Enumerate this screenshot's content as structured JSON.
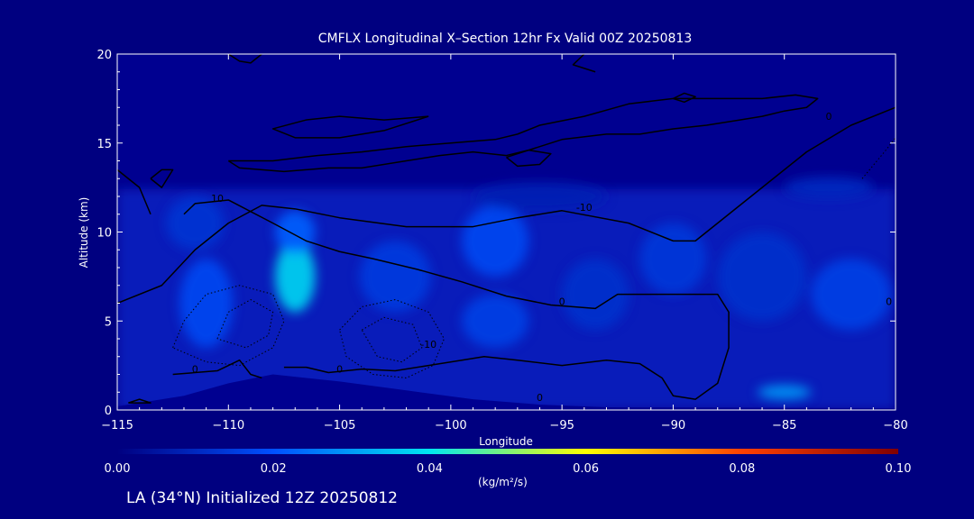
{
  "chart_data": {
    "type": "heatmap",
    "title": "CMFLX Longitudinal X–Section 12hr  Fx Valid 00Z 20250813",
    "xlabel": "Longitude",
    "ylabel": "Altitude (km)",
    "xlim": [
      -115,
      -80
    ],
    "ylim": [
      0,
      20
    ],
    "x_ticks": [
      -115,
      -110,
      -105,
      -100,
      -95,
      -90,
      -85,
      -80
    ],
    "x_tick_labels": [
      "−115",
      "−110",
      "−105",
      "−100",
      "−95",
      "−90",
      "−85",
      "−80"
    ],
    "y_ticks": [
      0,
      5,
      10,
      15,
      20
    ],
    "y_tick_labels": [
      "0",
      "5",
      "10",
      "15",
      "20"
    ],
    "colorbar": {
      "ticks": [
        0.0,
        0.02,
        0.04,
        0.06,
        0.08,
        0.1
      ],
      "tick_labels": [
        "0.00",
        "0.02",
        "0.04",
        "0.06",
        "0.08",
        "0.10"
      ],
      "units": "(kg/m²/s)",
      "colors": [
        "#000080",
        "#0050ff",
        "#00e6f0",
        "#ffff00",
        "#ff4000",
        "#800000"
      ]
    },
    "field_blobs": [
      {
        "lon": -111,
        "alt": 6,
        "sx": 1.2,
        "sy": 2.5,
        "value": 0.018
      },
      {
        "lon": -111.5,
        "alt": 10.5,
        "sx": 1.3,
        "sy": 1.5,
        "value": 0.013
      },
      {
        "lon": -107,
        "alt": 7.5,
        "sx": 0.9,
        "sy": 2.0,
        "value": 0.038
      },
      {
        "lon": -107,
        "alt": 10,
        "sx": 0.9,
        "sy": 1.2,
        "value": 0.022
      },
      {
        "lon": -102.5,
        "alt": 7.5,
        "sx": 1.6,
        "sy": 2.0,
        "value": 0.015
      },
      {
        "lon": -98,
        "alt": 9.5,
        "sx": 1.5,
        "sy": 2.0,
        "value": 0.018
      },
      {
        "lon": -98,
        "alt": 5,
        "sx": 1.5,
        "sy": 1.5,
        "value": 0.016
      },
      {
        "lon": -93.5,
        "alt": 6.5,
        "sx": 1.5,
        "sy": 2.0,
        "value": 0.012
      },
      {
        "lon": -90,
        "alt": 8.5,
        "sx": 1.5,
        "sy": 2.0,
        "value": 0.014
      },
      {
        "lon": -86,
        "alt": 7.5,
        "sx": 2.0,
        "sy": 2.5,
        "value": 0.012
      },
      {
        "lon": -82,
        "alt": 6.5,
        "sx": 1.8,
        "sy": 2.0,
        "value": 0.016
      },
      {
        "lon": -85,
        "alt": 1,
        "sx": 1.2,
        "sy": 0.4,
        "value": 0.03
      },
      {
        "lon": -96,
        "alt": 12,
        "sx": 3.0,
        "sy": 0.8,
        "value": 0.008
      },
      {
        "lon": -83,
        "alt": 12.5,
        "sx": 2.0,
        "sy": 0.6,
        "value": 0.01
      }
    ],
    "terrain_km": [
      [
        -115,
        0.2
      ],
      [
        -112,
        0.8
      ],
      [
        -110,
        1.5
      ],
      [
        -108,
        2.0
      ],
      [
        -105,
        1.6
      ],
      [
        -102,
        1.1
      ],
      [
        -99,
        0.6
      ],
      [
        -96,
        0.3
      ],
      [
        -93,
        0.15
      ],
      [
        -80,
        0.1
      ]
    ],
    "contour_labels": [
      {
        "text": "0",
        "lon": -111.5,
        "alt": 2.1
      },
      {
        "text": "0",
        "lon": -105,
        "alt": 2.1
      },
      {
        "text": "0",
        "lon": -96,
        "alt": 0.5
      },
      {
        "text": "0",
        "lon": -95,
        "alt": 5.9
      },
      {
        "text": "0",
        "lon": -80.3,
        "alt": 5.9
      },
      {
        "text": "0",
        "lon": -83,
        "alt": 16.3
      },
      {
        "text": "-10",
        "lon": -101,
        "alt": 3.5
      },
      {
        "text": "-10",
        "lon": -94,
        "alt": 11.2
      },
      {
        "text": "10",
        "lon": -110.5,
        "alt": 11.7
      }
    ],
    "contours": [
      [
        [
          -115,
          6
        ],
        [
          -113,
          7
        ],
        [
          -111.5,
          9
        ],
        [
          -110,
          10.5
        ],
        [
          -108.5,
          11.5
        ],
        [
          -107,
          11.3
        ],
        [
          -105,
          10.8
        ],
        [
          -102,
          10.3
        ],
        [
          -99,
          10.3
        ],
        [
          -97,
          10.8
        ],
        [
          -95,
          11.2
        ],
        [
          -92,
          10.5
        ],
        [
          -90,
          9.5
        ],
        [
          -89,
          9.5
        ],
        [
          -87.5,
          11
        ],
        [
          -86,
          12.5
        ],
        [
          -84,
          14.5
        ],
        [
          -82,
          16
        ],
        [
          -80,
          17
        ]
      ],
      [
        [
          -112.5,
          2
        ],
        [
          -110.5,
          2.2
        ],
        [
          -109.5,
          2.8
        ],
        [
          -109,
          2
        ],
        [
          -108.5,
          1.8
        ]
      ],
      [
        [
          -107.5,
          2.4
        ],
        [
          -106.5,
          2.4
        ],
        [
          -105.5,
          2.1
        ],
        [
          -104,
          2.3
        ],
        [
          -102.5,
          2.2
        ],
        [
          -101,
          2.5
        ],
        [
          -99.5,
          2.8
        ],
        [
          -98.5,
          3.0
        ],
        [
          -97,
          2.8
        ],
        [
          -95,
          2.5
        ],
        [
          -93,
          2.8
        ],
        [
          -91.5,
          2.6
        ],
        [
          -90.5,
          1.8
        ],
        [
          -90,
          0.8
        ],
        [
          -89,
          0.6
        ],
        [
          -88,
          1.5
        ],
        [
          -87.5,
          3.5
        ],
        [
          -87.5,
          5.5
        ],
        [
          -88,
          6.5
        ],
        [
          -89.5,
          6.5
        ],
        [
          -91,
          6.5
        ],
        [
          -92.5,
          6.5
        ],
        [
          -93.5,
          5.7
        ],
        [
          -95.5,
          5.9
        ],
        [
          -97.5,
          6.4
        ],
        [
          -99.5,
          7.2
        ],
        [
          -101.5,
          7.9
        ],
        [
          -103.5,
          8.5
        ],
        [
          -105,
          8.9
        ],
        [
          -106.5,
          9.5
        ],
        [
          -108,
          10.5
        ],
        [
          -110,
          11.8
        ],
        [
          -111.5,
          11.6
        ],
        [
          -112,
          11.0
        ]
      ],
      [
        [
          -114.5,
          0.4
        ],
        [
          -114,
          0.6
        ],
        [
          -113.5,
          0.4
        ],
        [
          -114.5,
          0.4
        ]
      ],
      [
        [
          -115,
          13.5
        ],
        [
          -114,
          12.5
        ],
        [
          -113.5,
          11
        ]
      ],
      [
        [
          -113.5,
          13
        ],
        [
          -113,
          13.5
        ],
        [
          -112.5,
          13.5
        ],
        [
          -113,
          12.5
        ],
        [
          -113.5,
          13
        ]
      ],
      [
        [
          -110,
          14
        ],
        [
          -108,
          14
        ],
        [
          -106,
          14.3
        ],
        [
          -104,
          14.5
        ],
        [
          -102,
          14.8
        ],
        [
          -100,
          15
        ],
        [
          -98,
          15.2
        ],
        [
          -97,
          15.5
        ],
        [
          -96,
          16
        ],
        [
          -94,
          16.5
        ],
        [
          -92,
          17.2
        ],
        [
          -90,
          17.5
        ],
        [
          -88,
          17.5
        ],
        [
          -86,
          17.5
        ],
        [
          -84.5,
          17.7
        ],
        [
          -83.5,
          17.5
        ],
        [
          -84,
          17
        ],
        [
          -85,
          16.8
        ],
        [
          -86,
          16.5
        ],
        [
          -87,
          16.3
        ],
        [
          -88.5,
          16
        ],
        [
          -90,
          15.8
        ],
        [
          -91.5,
          15.5
        ],
        [
          -93,
          15.5
        ],
        [
          -95,
          15.2
        ],
        [
          -96.5,
          14.6
        ],
        [
          -97.5,
          14.3
        ],
        [
          -99,
          14.5
        ],
        [
          -100.5,
          14.3
        ],
        [
          -102,
          14
        ],
        [
          -104,
          13.6
        ],
        [
          -105.5,
          13.6
        ],
        [
          -107.5,
          13.4
        ],
        [
          -109.5,
          13.6
        ],
        [
          -110,
          14
        ]
      ],
      [
        [
          -101,
          16.5
        ],
        [
          -103,
          16.3
        ],
        [
          -105,
          16.5
        ],
        [
          -106.5,
          16.3
        ],
        [
          -108,
          15.8
        ],
        [
          -107,
          15.3
        ],
        [
          -105,
          15.3
        ],
        [
          -103,
          15.7
        ],
        [
          -101,
          16.5
        ]
      ],
      [
        [
          -97.5,
          14.2
        ],
        [
          -96.5,
          14.6
        ],
        [
          -95.5,
          14.4
        ],
        [
          -96,
          13.8
        ],
        [
          -97,
          13.7
        ],
        [
          -97.5,
          14.2
        ]
      ],
      [
        [
          -90,
          17.5
        ],
        [
          -89.5,
          17.3
        ],
        [
          -89,
          17.6
        ],
        [
          -89.5,
          17.8
        ],
        [
          -90,
          17.5
        ]
      ],
      [
        [
          -110,
          20
        ],
        [
          -109.5,
          19.6
        ],
        [
          -109,
          19.5
        ],
        [
          -108.5,
          20
        ]
      ],
      [
        [
          -94,
          20
        ],
        [
          -94.5,
          19.4
        ],
        [
          -93.5,
          19
        ]
      ]
    ],
    "dotted_contours": [
      [
        [
          -112.5,
          3.5
        ],
        [
          -112,
          5
        ],
        [
          -111,
          6.5
        ],
        [
          -109.5,
          7
        ],
        [
          -108,
          6.5
        ],
        [
          -107.5,
          5
        ],
        [
          -108,
          3.5
        ],
        [
          -109.5,
          2.5
        ],
        [
          -111,
          2.7
        ],
        [
          -112.5,
          3.5
        ]
      ],
      [
        [
          -110.5,
          4
        ],
        [
          -110,
          5.5
        ],
        [
          -109,
          6.2
        ],
        [
          -108,
          5.5
        ],
        [
          -108.2,
          4.2
        ],
        [
          -109.2,
          3.5
        ],
        [
          -110.5,
          4
        ]
      ],
      [
        [
          -105,
          4.5
        ],
        [
          -104,
          5.8
        ],
        [
          -102.5,
          6.2
        ],
        [
          -101,
          5.5
        ],
        [
          -100.3,
          4
        ],
        [
          -100.8,
          2.5
        ],
        [
          -102,
          1.8
        ],
        [
          -103.5,
          2
        ],
        [
          -104.7,
          3
        ],
        [
          -105,
          4.5
        ]
      ],
      [
        [
          -104,
          4.5
        ],
        [
          -103,
          5.2
        ],
        [
          -101.7,
          4.8
        ],
        [
          -101.3,
          3.5
        ],
        [
          -102.2,
          2.7
        ],
        [
          -103.3,
          3
        ],
        [
          -104,
          4.5
        ]
      ],
      [
        [
          -81.5,
          13
        ],
        [
          -80.5,
          14.5
        ],
        [
          -80,
          15.3
        ]
      ]
    ]
  },
  "footer": "LA (34°N) Initialized 12Z 20250812",
  "colors": {
    "background": "#000080",
    "axes": "#ffffff",
    "contour": "#000000"
  }
}
